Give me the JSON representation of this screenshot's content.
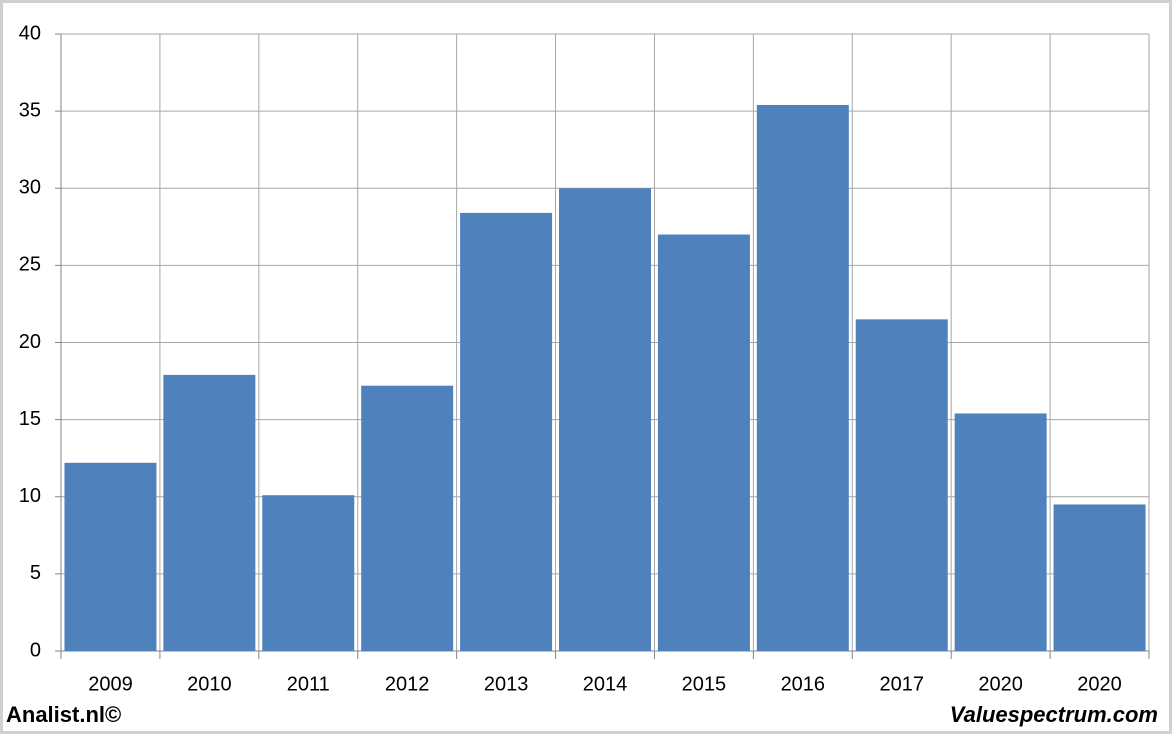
{
  "chart_data": {
    "type": "bar",
    "categories": [
      "2009",
      "2010",
      "2011",
      "2012",
      "2013",
      "2014",
      "2015",
      "2016",
      "2017",
      "2020",
      "2020"
    ],
    "values": [
      12.2,
      17.9,
      10.1,
      17.2,
      28.4,
      30.0,
      27.0,
      35.4,
      21.5,
      15.4,
      9.5
    ],
    "color": "#4f81bd",
    "ylim": [
      0,
      40
    ],
    "yticks": [
      0,
      5,
      10,
      15,
      20,
      25,
      30,
      35,
      40
    ],
    "grid": true
  },
  "footer": {
    "left": "Analist.nl©",
    "right": "Valuespectrum.com"
  }
}
